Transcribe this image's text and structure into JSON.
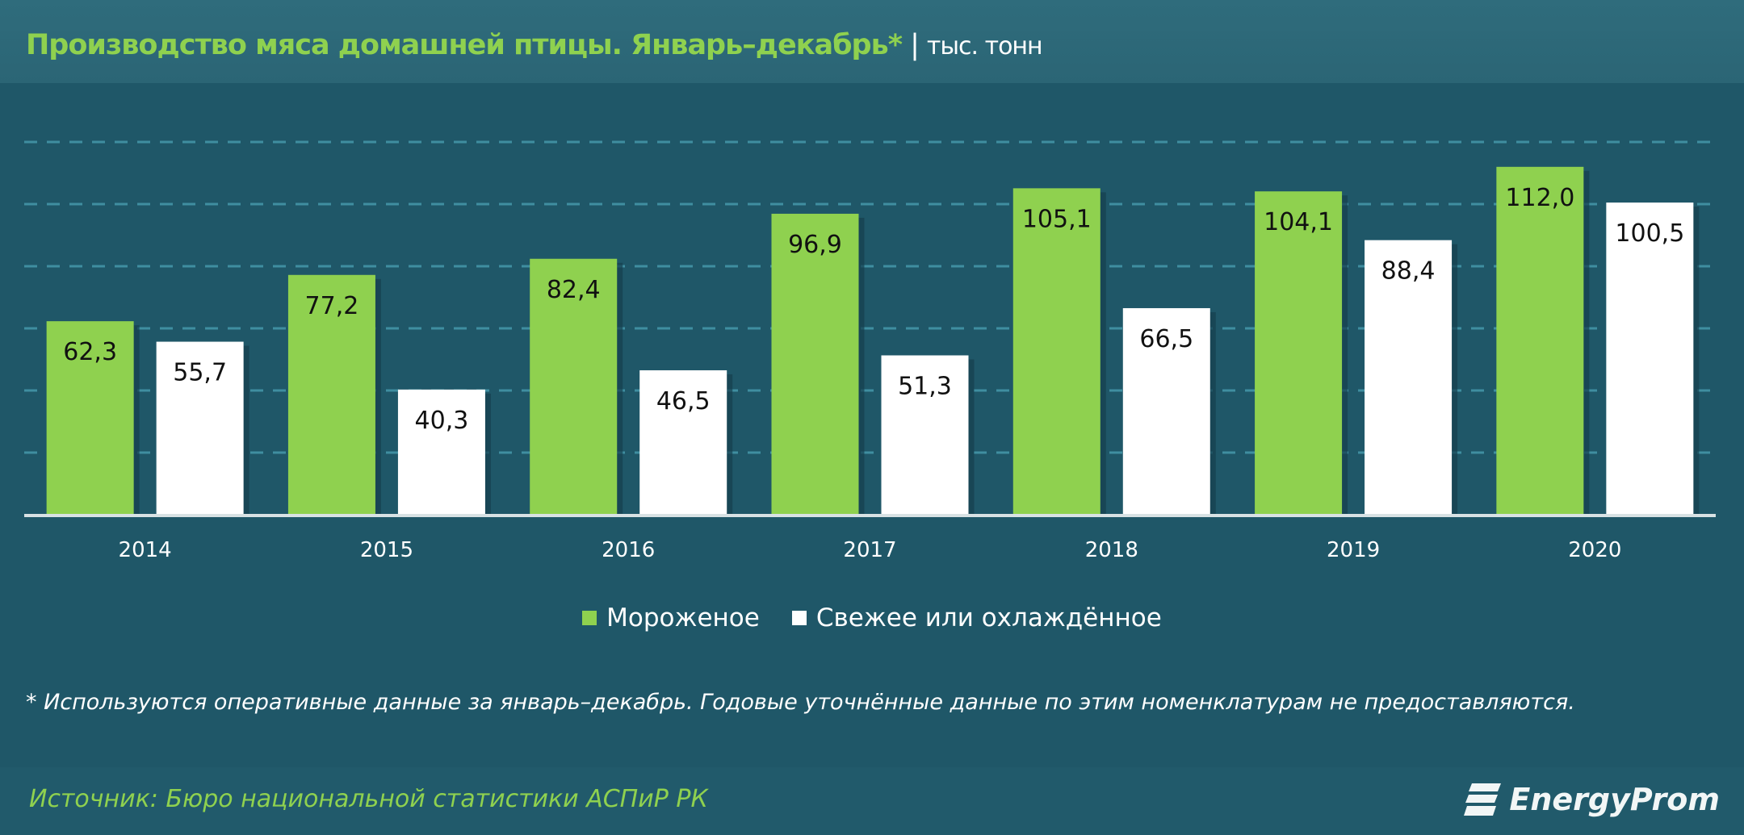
{
  "header": {
    "title": "Производство мяса домашней птицы. Январь–декабрь*",
    "separator": "|",
    "unit": "тыс. тонн"
  },
  "chart_data": {
    "type": "bar",
    "categories": [
      "2014",
      "2015",
      "2016",
      "2017",
      "2018",
      "2019",
      "2020"
    ],
    "series": [
      {
        "name": "Мороженое",
        "color": "#8fd14f",
        "values": [
          62.3,
          77.2,
          82.4,
          96.9,
          105.1,
          104.1,
          112.0
        ],
        "labels": [
          "62,3",
          "77,2",
          "82,4",
          "96,9",
          "105,1",
          "104,1",
          "112,0"
        ]
      },
      {
        "name": "Свежее или охлаждённое",
        "color": "#ffffff",
        "values": [
          55.7,
          40.3,
          46.5,
          51.3,
          66.5,
          88.4,
          100.5
        ],
        "labels": [
          "55,7",
          "40,3",
          "46,5",
          "51,3",
          "66,5",
          "88,4",
          "100,5"
        ]
      }
    ],
    "ylim": [
      0,
      120
    ],
    "gridlines": [
      20,
      40,
      60,
      80,
      100,
      120
    ],
    "grid": true,
    "legend": "bottom"
  },
  "legend": {
    "items": [
      "Мороженое",
      "Свежее или охлаждённое"
    ]
  },
  "footnote": "* Используются оперативные данные за январь–декабрь. Годовые уточнённые данные по этим номенклатурам не предоставляются.",
  "footer": {
    "source": "Источник: Бюро национальной  статистики АСПиР РК",
    "logo_text": "EnergyProm"
  },
  "colors": {
    "background": "#1f5768",
    "accent": "#8fd14f",
    "grid": "#3f8ea0"
  }
}
